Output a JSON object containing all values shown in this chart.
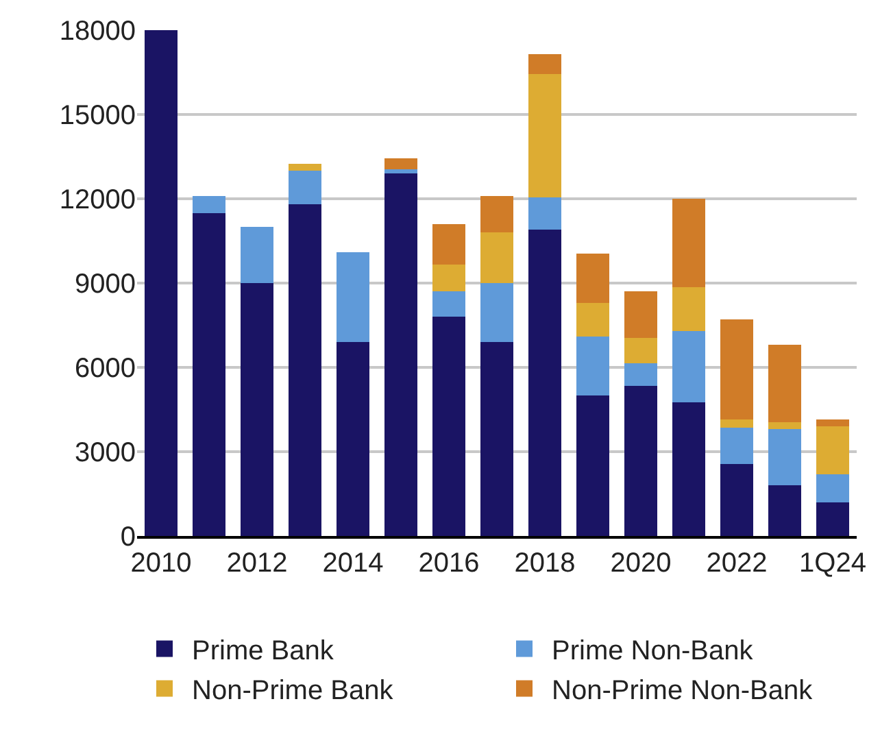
{
  "chart_data": {
    "type": "bar",
    "stacked": true,
    "categories": [
      "2010",
      null,
      "2012",
      null,
      "2014",
      null,
      "2016",
      null,
      "2018",
      null,
      "2020",
      null,
      "2022",
      null,
      "1Q24"
    ],
    "series": [
      {
        "name": "Prime Bank",
        "color": "#1a1464",
        "values": [
          18000,
          11500,
          9000,
          11800,
          6900,
          12900,
          7800,
          6900,
          10900,
          5000,
          5350,
          4750,
          2550,
          1800,
          1200
        ]
      },
      {
        "name": "Prime Non-Bank",
        "color": "#5f9ad9",
        "values": [
          0,
          600,
          2000,
          1200,
          3200,
          150,
          900,
          2100,
          1150,
          2100,
          800,
          2550,
          1300,
          2000,
          1000
        ]
      },
      {
        "name": "Non-Prime Bank",
        "color": "#ddac33",
        "values": [
          0,
          0,
          0,
          250,
          0,
          0,
          950,
          1800,
          4400,
          1200,
          900,
          1550,
          300,
          250,
          1700
        ]
      },
      {
        "name": "Non-Prime Non-Bank",
        "color": "#d07c28",
        "values": [
          0,
          0,
          0,
          0,
          0,
          400,
          1450,
          1300,
          700,
          1750,
          1650,
          3150,
          3550,
          2750,
          250
        ]
      }
    ],
    "ylim": [
      0,
      18000
    ],
    "yticks": [
      0,
      3000,
      6000,
      9000,
      12000,
      15000,
      18000
    ],
    "grid": "y",
    "legend": "bottom"
  }
}
